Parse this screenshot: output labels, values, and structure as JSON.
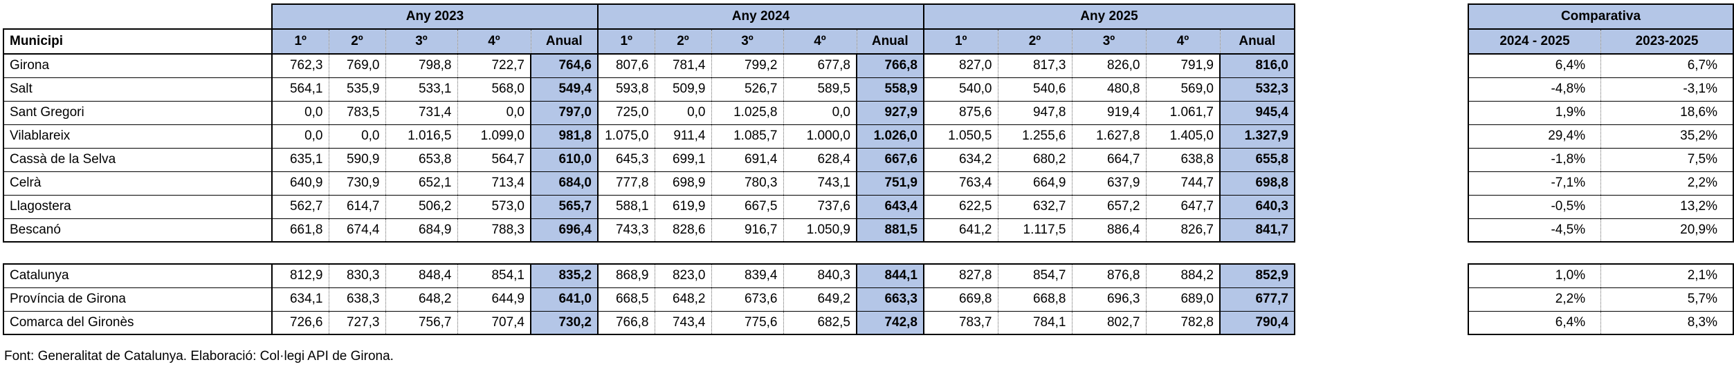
{
  "header": {
    "years": [
      "Any 2023",
      "Any 2024",
      "Any 2025"
    ],
    "municipi_label": "Municipi",
    "quarters": [
      "1º",
      "2º",
      "3º",
      "4º",
      "Anual"
    ]
  },
  "municipis": [
    {
      "name": "Girona",
      "values": [
        "762,3",
        "769,0",
        "798,8",
        "722,7",
        "764,6",
        "807,6",
        "781,4",
        "799,2",
        "677,8",
        "766,8",
        "827,0",
        "817,3",
        "826,0",
        "791,9",
        "816,0"
      ]
    },
    {
      "name": "Salt",
      "values": [
        "564,1",
        "535,9",
        "533,1",
        "568,0",
        "549,4",
        "593,8",
        "509,9",
        "526,7",
        "589,5",
        "558,9",
        "540,0",
        "540,6",
        "480,8",
        "569,0",
        "532,3"
      ]
    },
    {
      "name": "Sant Gregori",
      "values": [
        "0,0",
        "783,5",
        "731,4",
        "0,0",
        "797,0",
        "725,0",
        "0,0",
        "1.025,8",
        "0,0",
        "927,9",
        "875,6",
        "947,8",
        "919,4",
        "1.061,7",
        "945,4"
      ]
    },
    {
      "name": "Vilablareix",
      "values": [
        "0,0",
        "0,0",
        "1.016,5",
        "1.099,0",
        "981,8",
        "1.075,0",
        "911,4",
        "1.085,7",
        "1.000,0",
        "1.026,0",
        "1.050,5",
        "1.255,6",
        "1.627,8",
        "1.405,0",
        "1.327,9"
      ]
    },
    {
      "name": "Cassà de la Selva",
      "values": [
        "635,1",
        "590,9",
        "653,8",
        "564,7",
        "610,0",
        "645,3",
        "699,1",
        "691,4",
        "628,4",
        "667,6",
        "634,2",
        "680,2",
        "664,7",
        "638,8",
        "655,8"
      ]
    },
    {
      "name": "Celrà",
      "values": [
        "640,9",
        "730,9",
        "652,1",
        "713,4",
        "684,0",
        "777,8",
        "698,9",
        "780,3",
        "743,1",
        "751,9",
        "763,4",
        "664,9",
        "637,9",
        "744,7",
        "698,8"
      ]
    },
    {
      "name": "Llagostera",
      "values": [
        "562,7",
        "614,7",
        "506,2",
        "573,0",
        "565,7",
        "588,1",
        "619,9",
        "667,5",
        "737,6",
        "643,4",
        "622,5",
        "632,7",
        "657,2",
        "647,7",
        "640,3"
      ]
    },
    {
      "name": "Bescanó",
      "values": [
        "661,8",
        "674,4",
        "684,9",
        "788,3",
        "696,4",
        "743,3",
        "828,6",
        "916,7",
        "1.050,9",
        "881,5",
        "641,2",
        "1.117,5",
        "886,4",
        "826,7",
        "841,7"
      ]
    }
  ],
  "regions": [
    {
      "name": "Catalunya",
      "values": [
        "812,9",
        "830,3",
        "848,4",
        "854,1",
        "835,2",
        "868,9",
        "823,0",
        "839,4",
        "840,3",
        "844,1",
        "827,8",
        "854,7",
        "876,8",
        "884,2",
        "852,9"
      ]
    },
    {
      "name": "Província de Girona",
      "values": [
        "634,1",
        "638,3",
        "648,2",
        "644,9",
        "641,0",
        "668,5",
        "648,2",
        "673,6",
        "649,2",
        "663,3",
        "669,8",
        "668,8",
        "696,3",
        "689,0",
        "677,7"
      ]
    },
    {
      "name": "Comarca del Gironès",
      "values": [
        "726,6",
        "727,3",
        "756,7",
        "707,4",
        "730,2",
        "766,8",
        "743,4",
        "775,6",
        "682,5",
        "742,8",
        "783,7",
        "784,1",
        "802,7",
        "782,8",
        "790,4"
      ]
    }
  ],
  "comparativa": {
    "title": "Comparativa",
    "columns": [
      "2024 - 2025",
      "2023-2025"
    ],
    "municipis": [
      [
        "6,4%",
        "6,7%"
      ],
      [
        "-4,8%",
        "-3,1%"
      ],
      [
        "1,9%",
        "18,6%"
      ],
      [
        "29,4%",
        "35,2%"
      ],
      [
        "-1,8%",
        "7,5%"
      ],
      [
        "-7,1%",
        "2,2%"
      ],
      [
        "-0,5%",
        "13,2%"
      ],
      [
        "-4,5%",
        "20,9%"
      ]
    ],
    "regions": [
      [
        "1,0%",
        "2,1%"
      ],
      [
        "2,2%",
        "5,7%"
      ],
      [
        "6,4%",
        "8,3%"
      ]
    ]
  },
  "source": "Font: Generalitat de Catalunya. Elaboració: Col·legi API de Girona.",
  "colors": {
    "header_fill": "#b4c6e7",
    "border": "#000000"
  }
}
